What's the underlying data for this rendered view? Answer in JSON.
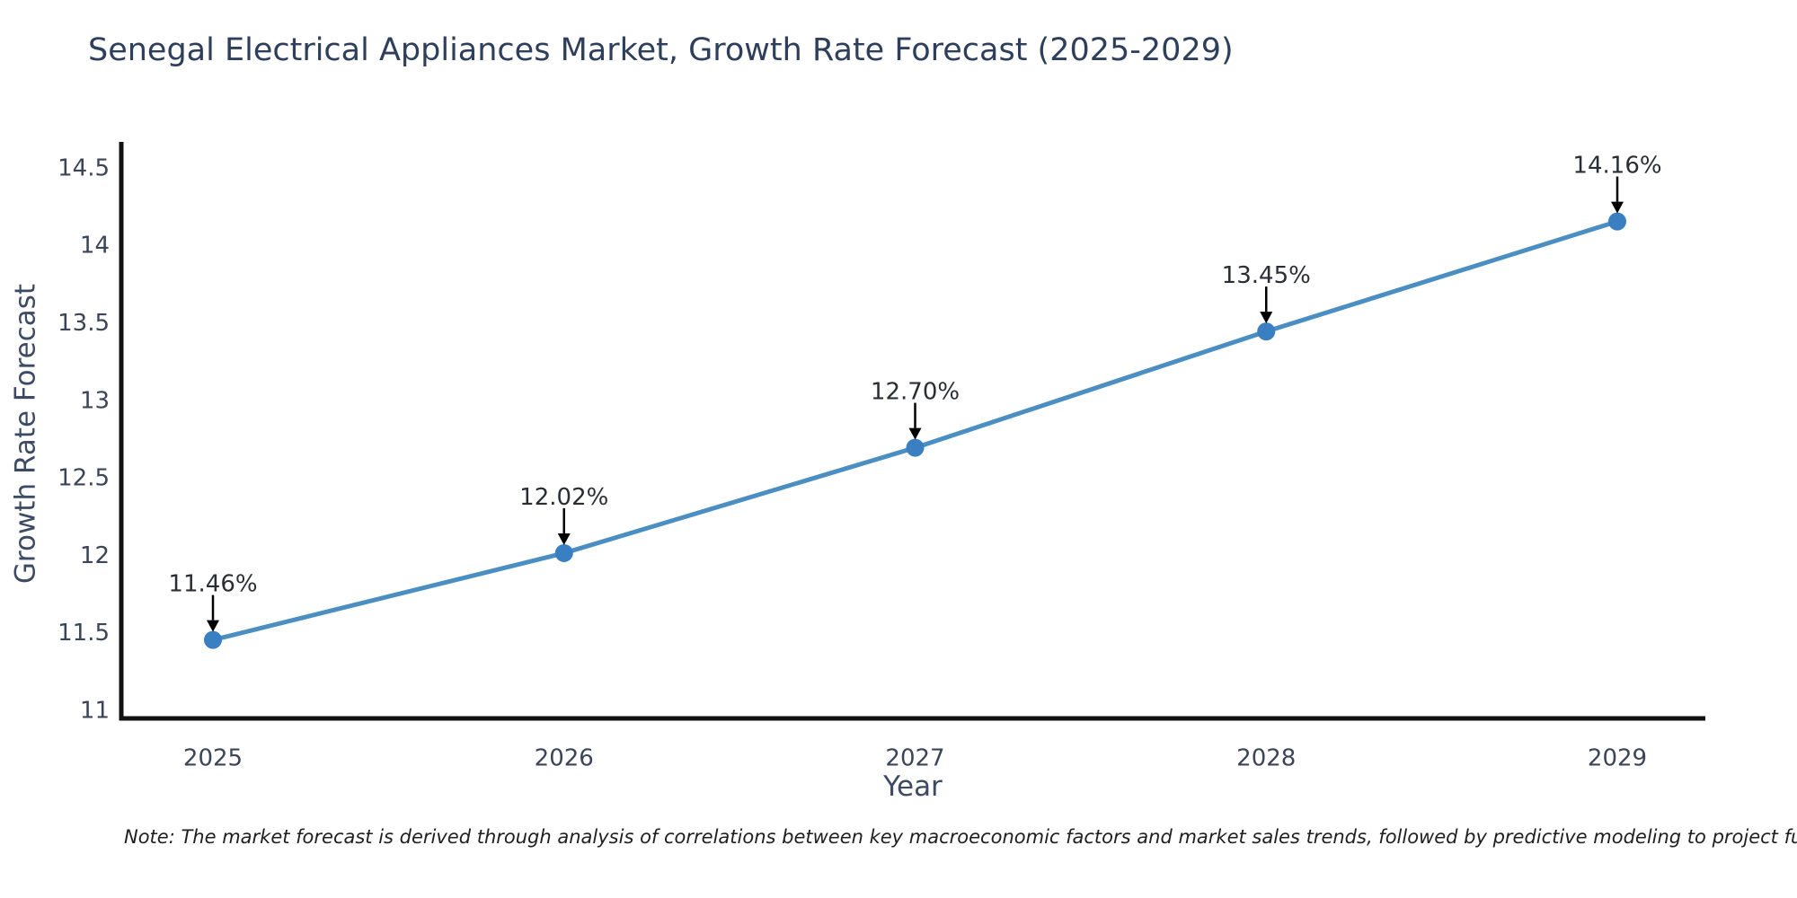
{
  "chart_data": {
    "type": "line",
    "title": "Senegal Electrical Appliances Market, Growth Rate Forecast (2025-2029)",
    "xlabel": "Year",
    "ylabel": "Growth Rate Forecast",
    "categories": [
      "2025",
      "2026",
      "2027",
      "2028",
      "2029"
    ],
    "values": [
      11.46,
      12.02,
      12.7,
      13.45,
      14.16
    ],
    "data_labels": [
      "11.46%",
      "12.02%",
      "12.70%",
      "13.45%",
      "14.16%"
    ],
    "ylim": [
      11,
      14.7
    ],
    "yticks": [
      11,
      11.5,
      12,
      12.5,
      13,
      13.5,
      14,
      14.5
    ],
    "grid": false,
    "legend": "none",
    "annotation_style": "down-arrow",
    "colors": {
      "line": "#4a8ec2",
      "marker": "#3a7fc1",
      "arrow": "#000000",
      "axis_spine": "#111111",
      "title_text": "#2e3f5c",
      "tick_text": "#3b4557",
      "axis_label_text": "#3d4a63",
      "data_label_text": "#2a2d33",
      "background": "#ffffff"
    }
  },
  "footnote": {
    "text": "Note: The market forecast is derived through analysis of correlations between key macroeconomic factors and market sales trends, followed by predictive modeling to project future sales."
  }
}
